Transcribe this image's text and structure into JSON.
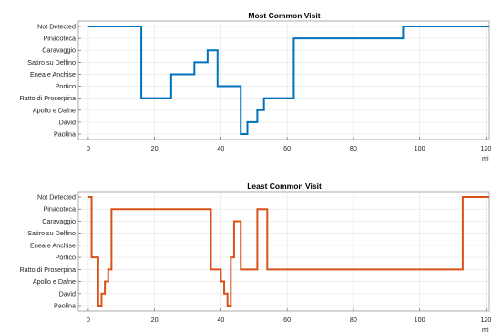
{
  "chart_data": [
    {
      "type": "line",
      "title": "Most Common Visit",
      "xlabel": "mi",
      "ylabel": "",
      "xlim": [
        -3,
        121
      ],
      "xticks": [
        0,
        20,
        40,
        60,
        80,
        100,
        120
      ],
      "grid": true,
      "categories": [
        "Paolina",
        "David",
        "Apollo e Dafne",
        "Ratto di Proserpina",
        "Portico",
        "Enea e Anchise",
        "Satiro su Delfino",
        "Caravaggio",
        "Pinacoteca",
        "Not Detected"
      ],
      "color": "#0072BD",
      "x": [
        0,
        16,
        16,
        25,
        25,
        32,
        32,
        36,
        36,
        39,
        39,
        46,
        46,
        48,
        48,
        51,
        51,
        53,
        53,
        54,
        54,
        62,
        62,
        95,
        95,
        121
      ],
      "y": [
        "Not Detected",
        "Not Detected",
        "Ratto di Proserpina",
        "Ratto di Proserpina",
        "Enea e Anchise",
        "Enea e Anchise",
        "Satiro su Delfino",
        "Satiro su Delfino",
        "Caravaggio",
        "Caravaggio",
        "Portico",
        "Portico",
        "Paolina",
        "Paolina",
        "David",
        "David",
        "Apollo e Dafne",
        "Apollo e Dafne",
        "Ratto di Proserpina",
        "Ratto di Proserpina",
        "Ratto di Proserpina",
        "Ratto di Proserpina",
        "Pinacoteca",
        "Pinacoteca",
        "Not Detected",
        "Not Detected"
      ]
    },
    {
      "type": "line",
      "title": "Least Common Visit",
      "xlabel": "mi",
      "ylabel": "",
      "xlim": [
        -3,
        121
      ],
      "xticks": [
        0,
        20,
        40,
        60,
        80,
        100,
        120
      ],
      "grid": true,
      "categories": [
        "Paolina",
        "David",
        "Apollo e Dafne",
        "Ratto di Proserpina",
        "Portico",
        "Enea e Anchise",
        "Satiro su Delfino",
        "Caravaggio",
        "Pinacoteca",
        "Not Detected"
      ],
      "color": "#D95319",
      "x": [
        0,
        1,
        1,
        3,
        3,
        4,
        4,
        5,
        5,
        6,
        6,
        7,
        7,
        8,
        8,
        37,
        37,
        40,
        40,
        41,
        41,
        42,
        42,
        43,
        43,
        44,
        44,
        45,
        45,
        46,
        46,
        49,
        49,
        51,
        51,
        53,
        53,
        54,
        54,
        113,
        113,
        114,
        114,
        121
      ],
      "y": [
        "Not Detected",
        "Not Detected",
        "Portico",
        "Portico",
        "Paolina",
        "Paolina",
        "David",
        "David",
        "Apollo e Dafne",
        "Apollo e Dafne",
        "Ratto di Proserpina",
        "Ratto di Proserpina",
        "Pinacoteca",
        "Pinacoteca",
        "Pinacoteca",
        "Pinacoteca",
        "Ratto di Proserpina",
        "Ratto di Proserpina",
        "Apollo e Dafne",
        "Apollo e Dafne",
        "David",
        "David",
        "Paolina",
        "Paolina",
        "Portico",
        "Portico",
        "Caravaggio",
        "Caravaggio",
        "Caravaggio",
        "Caravaggio",
        "Ratto di Proserpina",
        "Ratto di Proserpina",
        "Ratto di Proserpina",
        "Ratto di Proserpina",
        "Pinacoteca",
        "Pinacoteca",
        "Pinacoteca",
        "Pinacoteca",
        "Ratto di Proserpina",
        "Ratto di Proserpina",
        "Not Detected",
        "Not Detected",
        "Not Detected",
        "Not Detected"
      ]
    }
  ]
}
